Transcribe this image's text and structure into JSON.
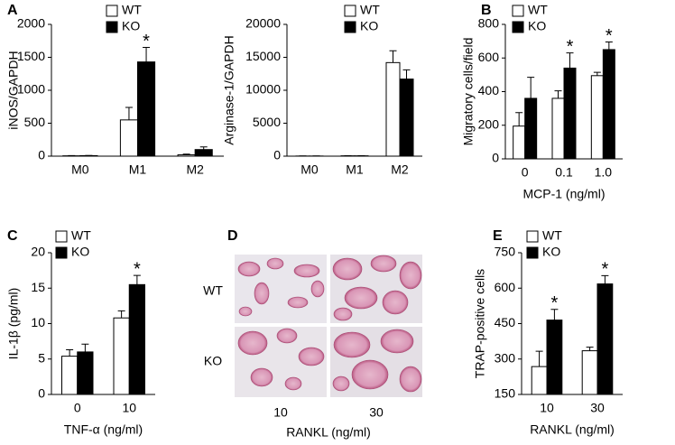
{
  "chart_data": [
    {
      "type": "bar",
      "panel": "A",
      "ylabel": "iNOS/GAPDH",
      "categories": [
        "M0",
        "M1",
        "M2"
      ],
      "series": [
        {
          "name": "WT",
          "color": "#ffffff",
          "values": [
            5,
            550,
            20
          ],
          "errors": [
            3,
            190,
            10
          ]
        },
        {
          "name": "KO",
          "color": "#000000",
          "values": [
            8,
            1430,
            100
          ],
          "errors": [
            3,
            220,
            40
          ]
        }
      ],
      "ylim": [
        0,
        2000
      ],
      "yticks": [
        0,
        500,
        1000,
        1500,
        2000
      ],
      "annotations": [
        {
          "text": "*",
          "series": 1,
          "index": 1
        }
      ]
    },
    {
      "type": "bar",
      "ylabel": "Arginase-1/GAPDH",
      "categories": [
        "M0",
        "M1",
        "M2"
      ],
      "series": [
        {
          "name": "WT",
          "color": "#ffffff",
          "values": [
            20,
            50,
            14200
          ],
          "errors": [
            10,
            20,
            1800
          ]
        },
        {
          "name": "KO",
          "color": "#000000",
          "values": [
            20,
            50,
            11700
          ],
          "errors": [
            10,
            20,
            1400
          ]
        }
      ],
      "ylim": [
        0,
        20000
      ],
      "yticks": [
        0,
        5000,
        10000,
        15000,
        20000
      ]
    },
    {
      "type": "bar",
      "panel": "B",
      "ylabel": "Migratory cells/field",
      "xlabel": "MCP-1  (ng/ml)",
      "categories": [
        "0",
        "0.1",
        "1.0"
      ],
      "series": [
        {
          "name": "WT",
          "color": "#ffffff",
          "values": [
            195,
            360,
            495
          ],
          "errors": [
            80,
            45,
            20
          ]
        },
        {
          "name": "KO",
          "color": "#000000",
          "values": [
            360,
            540,
            650
          ],
          "errors": [
            125,
            90,
            45
          ]
        }
      ],
      "ylim": [
        0,
        800
      ],
      "yticks": [
        0,
        200,
        400,
        600,
        800
      ],
      "annotations": [
        {
          "text": "*",
          "series": 1,
          "index": 1
        },
        {
          "text": "*",
          "series": 1,
          "index": 2
        }
      ]
    },
    {
      "type": "bar",
      "panel": "C",
      "ylabel": "IL-1β (pg/ml)",
      "xlabel": "TNF-α (ng/ml)",
      "categories": [
        "0",
        "10"
      ],
      "series": [
        {
          "name": "WT",
          "color": "#ffffff",
          "values": [
            5.4,
            10.8
          ],
          "errors": [
            0.9,
            1.0
          ]
        },
        {
          "name": "KO",
          "color": "#000000",
          "values": [
            6.0,
            15.5
          ],
          "errors": [
            1.1,
            1.3
          ]
        }
      ],
      "ylim": [
        0,
        20
      ],
      "yticks": [
        0,
        5,
        10,
        15,
        20
      ],
      "annotations": [
        {
          "text": "*",
          "series": 1,
          "index": 1
        }
      ]
    },
    {
      "type": "image",
      "panel": "D",
      "rows": [
        "WT",
        "KO"
      ],
      "columns": [
        "10",
        "30"
      ],
      "xlabel": "RANKL (ng/ml)"
    },
    {
      "type": "bar",
      "panel": "E",
      "ylabel": "TRAP-positive cells",
      "xlabel": "RANKL (ng/ml)",
      "categories": [
        "10",
        "30"
      ],
      "series": [
        {
          "name": "WT",
          "color": "#ffffff",
          "values": [
            268,
            335
          ],
          "errors": [
            65,
            15
          ]
        },
        {
          "name": "KO",
          "color": "#000000",
          "values": [
            465,
            618
          ],
          "errors": [
            45,
            35
          ]
        }
      ],
      "ylim": [
        150,
        750
      ],
      "yticks": [
        150,
        300,
        450,
        600,
        750
      ],
      "annotations": [
        {
          "text": "*",
          "series": 1,
          "index": 0
        },
        {
          "text": "*",
          "series": 1,
          "index": 1
        }
      ]
    }
  ]
}
